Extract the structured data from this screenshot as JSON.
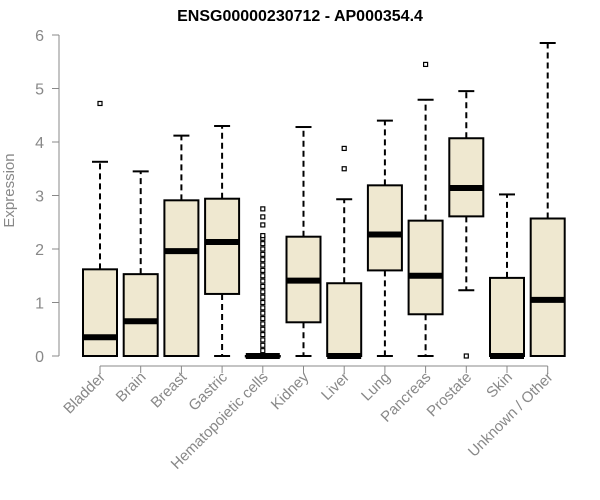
{
  "chart_data": {
    "type": "box",
    "title": "ENSG00000230712 - AP000354.4",
    "xlabel": "",
    "ylabel": "Expression",
    "ylim": [
      0,
      6
    ],
    "yticks": [
      0,
      1,
      2,
      3,
      4,
      5,
      6
    ],
    "box_fill": "#efe8d0",
    "categories": [
      "Bladder",
      "Brain",
      "Breast",
      "Gastric",
      "Hematopoietic cells",
      "Kidney",
      "Liver",
      "Lung",
      "Pancreas",
      "Prostate",
      "Skin",
      "Unknown / Other"
    ],
    "boxes": [
      {
        "min": 0,
        "q1": 0,
        "median": 0.35,
        "q3": 1.62,
        "max": 3.63,
        "outliers": [
          4.72
        ]
      },
      {
        "min": 0,
        "q1": 0,
        "median": 0.65,
        "q3": 1.53,
        "max": 3.45,
        "outliers": []
      },
      {
        "min": 0,
        "q1": 0,
        "median": 1.96,
        "q3": 2.91,
        "max": 4.12,
        "outliers": []
      },
      {
        "min": 0,
        "q1": 1.16,
        "median": 2.13,
        "q3": 2.94,
        "max": 4.3,
        "outliers": []
      },
      {
        "min": 0,
        "q1": 0,
        "median": 0,
        "q3": 0,
        "max": 0,
        "outliers": [
          0.1,
          0.2,
          0.3,
          0.4,
          0.5,
          0.6,
          0.7,
          0.8,
          0.9,
          1.0,
          1.1,
          1.2,
          1.3,
          1.4,
          1.5,
          1.6,
          1.7,
          1.8,
          1.9,
          2.0,
          2.1,
          2.2,
          2.25,
          2.45,
          2.6,
          2.75
        ]
      },
      {
        "min": 0,
        "q1": 0.63,
        "median": 1.41,
        "q3": 2.23,
        "max": 4.28,
        "outliers": []
      },
      {
        "min": 0,
        "q1": 0,
        "median": 0,
        "q3": 1.36,
        "max": 2.93,
        "outliers": [
          3.5,
          3.88
        ]
      },
      {
        "min": 0,
        "q1": 1.6,
        "median": 2.27,
        "q3": 3.19,
        "max": 4.4,
        "outliers": []
      },
      {
        "min": 0,
        "q1": 0.78,
        "median": 1.5,
        "q3": 2.53,
        "max": 4.79,
        "outliers": [
          5.45
        ]
      },
      {
        "min": 1.23,
        "q1": 2.61,
        "median": 3.14,
        "q3": 4.07,
        "max": 4.95,
        "outliers": [
          0
        ]
      },
      {
        "min": 0,
        "q1": 0,
        "median": 0,
        "q3": 1.46,
        "max": 3.02,
        "outliers": []
      },
      {
        "min": 0,
        "q1": 0,
        "median": 1.05,
        "q3": 2.57,
        "max": 5.85,
        "outliers": []
      }
    ]
  }
}
